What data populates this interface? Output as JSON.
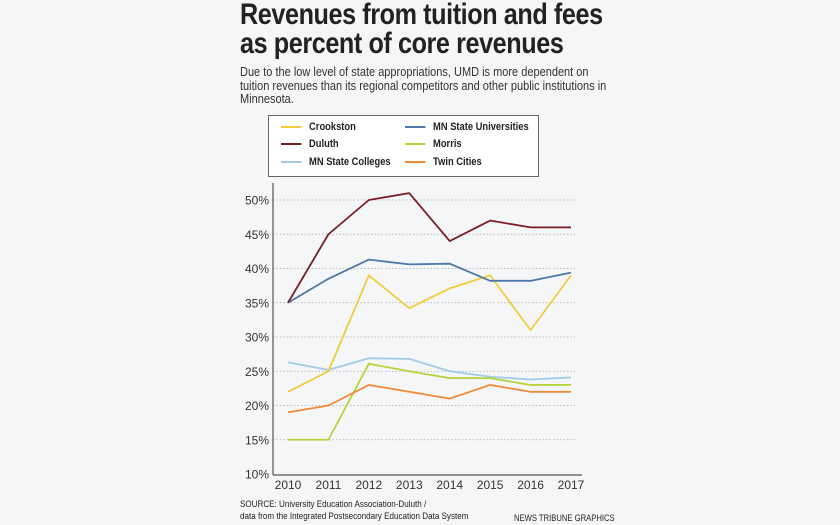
{
  "chart_data": {
    "type": "line",
    "title": "Revenues from tuition and fees as percent of core revenues",
    "subtitle": "Due to the low level of state appropriations, UMD is more dependent on tuition revenues than its regional competitors and other public institutions in Minnesota.",
    "x": [
      2010,
      2011,
      2012,
      2013,
      2014,
      2015,
      2016,
      2017
    ],
    "x_tick_labels": [
      "2010",
      "2011",
      "2012",
      "2013",
      "2014",
      "2015",
      "2016",
      "2017"
    ],
    "y_tick_labels": [
      "10%",
      "15%",
      "20%",
      "25%",
      "30%",
      "35%",
      "40%",
      "45%",
      "50%"
    ],
    "y_ticks": [
      10,
      15,
      20,
      25,
      30,
      35,
      40,
      45,
      50
    ],
    "ylim": [
      10,
      52
    ],
    "xlabel": "",
    "ylabel": "",
    "grid": "horizontal dotted",
    "legend_placement": "top",
    "series": [
      {
        "name": "Crookston",
        "color": "#f2cc3c",
        "values": [
          22,
          25,
          39,
          34.2,
          37.1,
          39,
          31,
          39
        ]
      },
      {
        "name": "MN State Universities",
        "color": "#4b7aa8",
        "values": [
          35,
          38.5,
          41.3,
          40.6,
          40.7,
          38.2,
          38.2,
          39.4
        ]
      },
      {
        "name": "Duluth",
        "color": "#7b1e24",
        "values": [
          35,
          45,
          50,
          51,
          44,
          47,
          46,
          46
        ]
      },
      {
        "name": "Morris",
        "color": "#b7d23a",
        "values": [
          15,
          15,
          26.1,
          25,
          24,
          24,
          23,
          23
        ]
      },
      {
        "name": "MN State Colleges",
        "color": "#a3cbe6",
        "values": [
          26.3,
          25.2,
          26.9,
          26.8,
          25,
          24.2,
          23.8,
          24.1
        ]
      },
      {
        "name": "Twin Cities",
        "color": "#ef8a3a",
        "values": [
          19,
          20,
          23,
          22,
          21,
          23,
          22,
          22
        ]
      }
    ],
    "source": [
      "SOURCE: University Education Association-Duluth /",
      "data from the Integrated Postsecondary Education Data System"
    ],
    "credit": "NEWS TRIBUNE GRAPHICS"
  }
}
